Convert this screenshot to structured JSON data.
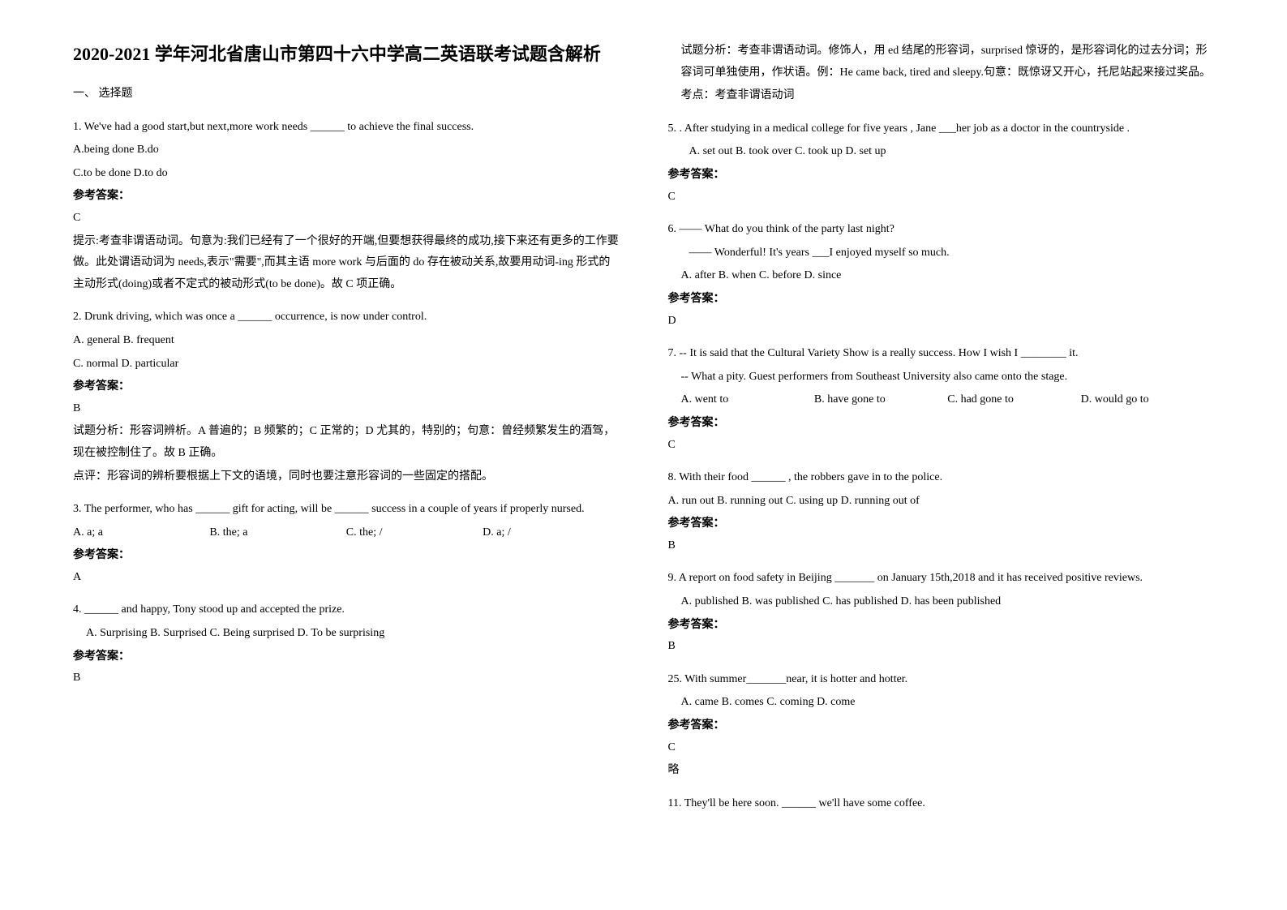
{
  "title": "2020-2021 学年河北省唐山市第四十六中学高二英语联考试题含解析",
  "section_heading": "一、 选择题",
  "answer_label": "参考答案：",
  "left": {
    "q1": {
      "stem": "1. We've had a good start,but next,more work needs ______ to achieve the final success.",
      "opt1": "A.being done    B.do",
      "opt2": "C.to be done    D.to do",
      "key": "C",
      "expl1": "提示:考查非谓语动词。句意为:我们已经有了一个很好的开端,但要想获得最终的成功,接下来还有更多的工作要做。此处谓语动词为 needs,表示\"需要\",而其主语 more work 与后面的 do 存在被动关系,故要用动词-ing 形式的主动形式(doing)或者不定式的被动形式(to be done)。故 C 项正确。"
    },
    "q2": {
      "stem": "2. Drunk driving, which was once a ______ occurrence, is now under control.",
      "opt1": "A. general   B. frequent",
      "opt2": "C. normal   D. particular",
      "key": "B",
      "expl1": "试题分析：形容词辨析。A 普遍的；B 频繁的；C 正常的；D 尤其的，特别的；句意：曾经频繁发生的酒驾，现在被控制住了。故 B 正确。",
      "expl2": "点评：形容词的辨析要根据上下文的语境，同时也要注意形容词的一些固定的搭配。"
    },
    "q3": {
      "stem": "3. The performer, who has ______ gift for acting, will be ______ success in a couple of years if properly nursed.",
      "optA": "A. a; a",
      "optB": "B. the; a",
      "optC": "C. the; /",
      "optD": "D. a; /",
      "key": "A"
    },
    "q4": {
      "stem": "4. ______ and happy, Tony stood up and accepted the prize.",
      "opts": "A. Surprising   B. Surprised   C. Being surprised   D. To be surprising",
      "key": "B"
    }
  },
  "right": {
    "q4cont": {
      "expl1": "试题分析：考查非谓语动词。修饰人，用 ed 结尾的形容词，surprised 惊讶的，是形容词化的过去分词；形容词可单独使用，作状语。例：He came back, tired and sleepy.句意：既惊讶又开心，托尼站起来接过奖品。",
      "expl2": "考点：考查非谓语动词"
    },
    "q5": {
      "stem": "5. .  After studying in a medical college for five years , Jane ___her job as a doctor in the countryside .",
      "opts": "A. set out       B. took over    C. took up     D. set up",
      "key": "C"
    },
    "q6": {
      "stem1": "6. —— What do you think of the party last night?",
      "stem2": "—— Wonderful! It's years ___I enjoyed myself so much.",
      "opts": "A.  after       B.  when       C.  before       D.  since",
      "key": "D"
    },
    "q7": {
      "stem1": "7. -- It is said that the Cultural Variety Show is a really success. How I wish I ________ it.",
      "stem2": "-- What a pity. Guest performers from Southeast University also came onto the stage.",
      "optA": "A. went to",
      "optB": "B. have gone to",
      "optC": "C. had gone to",
      "optD": "D. would go to",
      "key": "C"
    },
    "q8": {
      "stem": "8. With their food ______ , the robbers gave in to the police.",
      "opts": "A. run out    B. running out    C. using up      D. running out of",
      "key": "B"
    },
    "q9": {
      "stem": "9. A report on food safety in Beijing _______ on January 15th,2018 and it has received positive reviews.",
      "opts": "A. published       B. was published    C. has published    D. has been published",
      "key": "B"
    },
    "q10": {
      "stem": "25. With summer_______near, it is hotter and hotter.",
      "opts": "A. came          B. comes         C. coming     D. come",
      "key": "C",
      "expl": "略"
    },
    "q11": {
      "stem": "11. They'll be here soon. ______ we'll have some coffee."
    }
  }
}
